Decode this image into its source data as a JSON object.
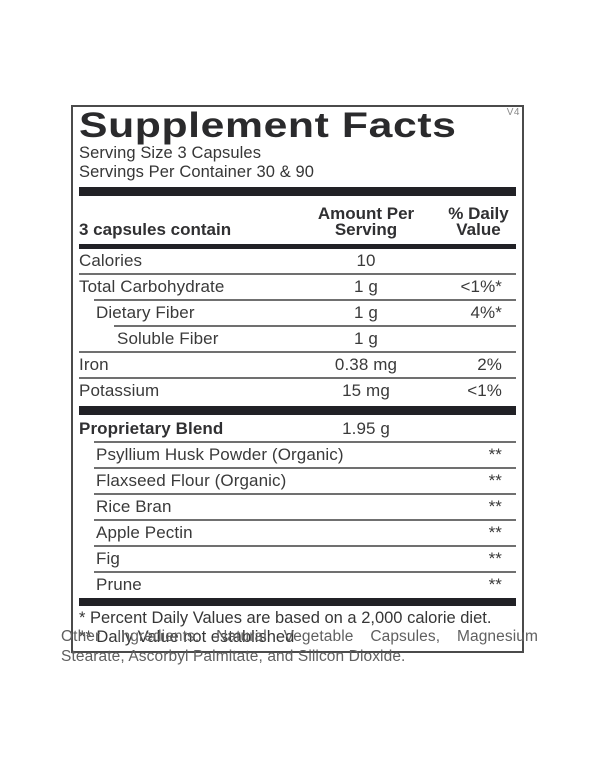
{
  "facts": {
    "version": "V4",
    "title": "Supplement Facts",
    "serving_size": "Serving Size 3 Capsules",
    "servings_per_container": "Servings Per Container 30 & 90",
    "header": {
      "contains": "3 capsules contain",
      "amount_line1": "Amount Per",
      "amount_line2": "Serving",
      "dv_line1": "% Daily",
      "dv_line2": "Value"
    },
    "rows": [
      {
        "name": "Calories",
        "amount": "10",
        "dv": ""
      },
      {
        "name": "Total Carbohydrate",
        "amount": "1 g",
        "dv": "<1%*"
      },
      {
        "name": "Dietary Fiber",
        "amount": "1 g",
        "dv": "4%*"
      },
      {
        "name": "Soluble Fiber",
        "amount": "1 g",
        "dv": ""
      },
      {
        "name": "Iron",
        "amount": "0.38 mg",
        "dv": "2%"
      },
      {
        "name": "Potassium",
        "amount": "15 mg",
        "dv": "<1%"
      }
    ],
    "blend": {
      "name": "Proprietary Blend",
      "amount": "1.95 g",
      "ingredients": [
        {
          "name": "Psyllium Husk Powder (Organic)",
          "dv": "**"
        },
        {
          "name": "Flaxseed Flour (Organic)",
          "dv": "**"
        },
        {
          "name": "Rice Bran",
          "dv": "**"
        },
        {
          "name": "Apple Pectin",
          "dv": "**"
        },
        {
          "name": "Fig",
          "dv": "**"
        },
        {
          "name": "Prune",
          "dv": "**"
        }
      ]
    },
    "footnotes": [
      "* Percent Daily Values are based on a 2,000 calorie diet.",
      "** Daily Value not established"
    ]
  },
  "other_ingredients": "Other Ingredients: Natural Vegetable Capsules, Magnesium Stearate, Ascorbyl Palmitate, and Silicon Dioxide.",
  "colors": {
    "bar": "#212126",
    "text": "#3a3a3a",
    "muted_text": "#606060",
    "divider": "#707070",
    "border": "#4b4b4b"
  }
}
